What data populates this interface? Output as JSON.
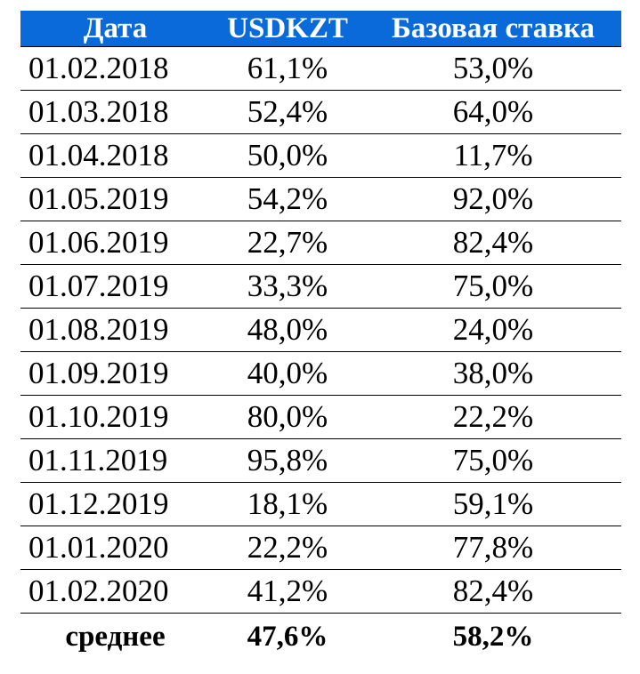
{
  "header": {
    "date": "Дата",
    "usdkzt": "USDKZT",
    "rate": "Базовая ставка"
  },
  "rows": [
    {
      "date": "01.02.2018",
      "usdkzt": "61,1%",
      "rate": "53,0%"
    },
    {
      "date": "01.03.2018",
      "usdkzt": "52,4%",
      "rate": "64,0%"
    },
    {
      "date": "01.04.2018",
      "usdkzt": "50,0%",
      "rate": "11,7%"
    },
    {
      "date": "01.05.2019",
      "usdkzt": "54,2%",
      "rate": "92,0%"
    },
    {
      "date": "01.06.2019",
      "usdkzt": "22,7%",
      "rate": "82,4%"
    },
    {
      "date": "01.07.2019",
      "usdkzt": "33,3%",
      "rate": "75,0%"
    },
    {
      "date": "01.08.2019",
      "usdkzt": "48,0%",
      "rate": "24,0%"
    },
    {
      "date": "01.09.2019",
      "usdkzt": "40,0%",
      "rate": "38,0%"
    },
    {
      "date": "01.10.2019",
      "usdkzt": "80,0%",
      "rate": "22,2%"
    },
    {
      "date": "01.11.2019",
      "usdkzt": "95,8%",
      "rate": "75,0%"
    },
    {
      "date": "01.12.2019",
      "usdkzt": "18,1%",
      "rate": "59,1%"
    },
    {
      "date": "01.01.2020",
      "usdkzt": "22,2%",
      "rate": "77,8%"
    },
    {
      "date": "01.02.2020",
      "usdkzt": "41,2%",
      "rate": "82,4%"
    }
  ],
  "footer": {
    "label": "среднее",
    "usdkzt": "47,6%",
    "rate": "58,2%"
  },
  "colors": {
    "header_bg": "#0a6ad9",
    "header_text": "#ffffff"
  }
}
